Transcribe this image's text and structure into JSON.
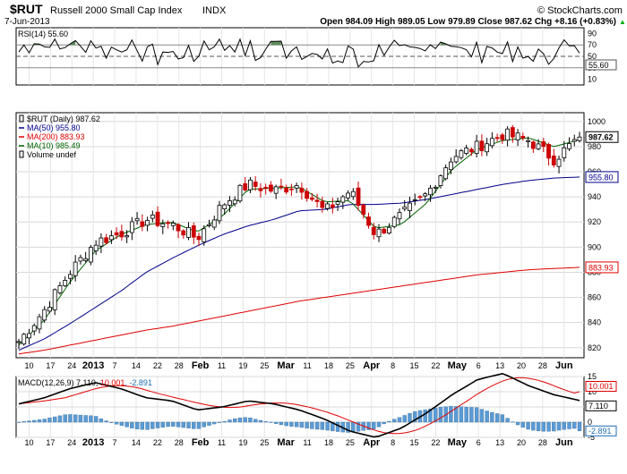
{
  "header": {
    "symbol": "$RUT",
    "name": "Russell 2000 Small Cap Index",
    "exchange": "INDX",
    "date": "7-Jun-2013",
    "credit": "© StockCharts.com",
    "quote": "Open 984.09  High 989.05  Low 979.89  Close 987.62  Chg +8.16 (+0.83%)",
    "quote_arrow": "▲"
  },
  "rsi_panel": {
    "legend": "RSI(14) 55.60",
    "last_label": "55.60",
    "ticks": [
      "90",
      "70",
      "50",
      "30",
      "10"
    ]
  },
  "price_panel": {
    "legend": [
      {
        "text": "$RUT (Daily) 987.62",
        "color": "#000000",
        "marker": "candle"
      },
      {
        "text": "MA(50) 955.80",
        "color": "#00008b",
        "marker": "line"
      },
      {
        "text": "MA(200) 883.93",
        "color": "#e00000",
        "marker": "line"
      },
      {
        "text": "MA(10) 985.49",
        "color": "#006400",
        "marker": "line"
      },
      {
        "text": "Volume undef",
        "color": "#000000",
        "marker": "bar"
      }
    ],
    "last_labels": {
      "close": "987.62",
      "ma50": "955.80",
      "ma200": "883.93"
    },
    "y_ticks": [
      "1000",
      "980",
      "960",
      "940",
      "920",
      "900",
      "880",
      "860",
      "840",
      "820"
    ]
  },
  "macd_panel": {
    "legend_parts": [
      {
        "text": "MACD(12,26,9) 7.110, ",
        "color": "#000000"
      },
      {
        "text": "10.001",
        "color": "#e00000"
      },
      {
        "text": ", -2.891",
        "color": "#1e6eb4"
      }
    ],
    "last_labels": {
      "macd": "7.110",
      "signal": "10.001",
      "hist": "-2.891"
    },
    "ticks": [
      "15",
      "10",
      "5",
      "0",
      "-5"
    ]
  },
  "x_axis": {
    "labels": [
      "10",
      "17",
      "24",
      "2013",
      "7",
      "14",
      "22",
      "28",
      "Feb",
      "11",
      "19",
      "25",
      "Mar",
      "11",
      "18",
      "25",
      "Apr",
      "8",
      "15",
      "22",
      "May",
      "6",
      "13",
      "20",
      "28",
      "Jun"
    ]
  },
  "colors": {
    "ma50": "#00008b",
    "ma200": "#e00000",
    "ma10": "#006400",
    "macd": "#000000",
    "signal": "#e00000",
    "histogram": "#5b9bd5",
    "candle_down": "#cc0000",
    "rsi_fill": "#5a8a5a"
  },
  "chart_data": {
    "type": "candlestick",
    "title": "$RUT Russell 2000 Small Cap Index INDX",
    "x_start_date": "2013-01-07",
    "x_end_date": "2013-06-07",
    "y_range": [
      812,
      1007
    ],
    "log_scale": false,
    "grid": true,
    "series": [
      {
        "name": "$RUT close (sampled)",
        "x": [
          "2013-01-07",
          "2013-01-14",
          "2013-01-22",
          "2013-01-28",
          "2013-02-04",
          "2013-02-11",
          "2013-02-19",
          "2013-02-25",
          "2013-03-04",
          "2013-03-11",
          "2013-03-18",
          "2013-03-25",
          "2013-04-01",
          "2013-04-08",
          "2013-04-15",
          "2013-04-22",
          "2013-04-29",
          "2013-05-06",
          "2013-05-13",
          "2013-05-20",
          "2013-05-28",
          "2013-06-03",
          "2013-06-07"
        ],
        "values": [
          825,
          850,
          880,
          904,
          911,
          922,
          918,
          907,
          934,
          950,
          945,
          950,
          928,
          945,
          910,
          925,
          942,
          972,
          980,
          990,
          985,
          970,
          987.62
        ]
      },
      {
        "name": "MA(50)",
        "values": [
          818,
          827,
          839,
          852,
          865,
          880,
          891,
          901,
          910,
          917,
          922,
          929,
          930,
          934,
          934,
          935,
          938,
          942,
          946,
          950,
          953,
          955,
          955.8
        ]
      },
      {
        "name": "MA(200)",
        "values": [
          815,
          818,
          822,
          826,
          830,
          834,
          837,
          841,
          845,
          849,
          853,
          857,
          860,
          863,
          866,
          869,
          872,
          875,
          878,
          880,
          882,
          883,
          883.93
        ]
      },
      {
        "name": "MA(10)",
        "values": [
          822,
          842,
          872,
          897,
          910,
          918,
          920,
          912,
          925,
          946,
          947,
          948,
          936,
          937,
          915,
          918,
          935,
          962,
          978,
          985,
          987,
          980,
          985.49
        ]
      }
    ],
    "rsi": {
      "period": 14,
      "last": 55.6,
      "levels": [
        30,
        70
      ],
      "range": [
        0,
        100
      ]
    },
    "macd": {
      "params": "12,26,9",
      "macd": 7.11,
      "signal": 10.001,
      "histogram": -2.891,
      "range": [
        -5,
        15
      ]
    }
  }
}
